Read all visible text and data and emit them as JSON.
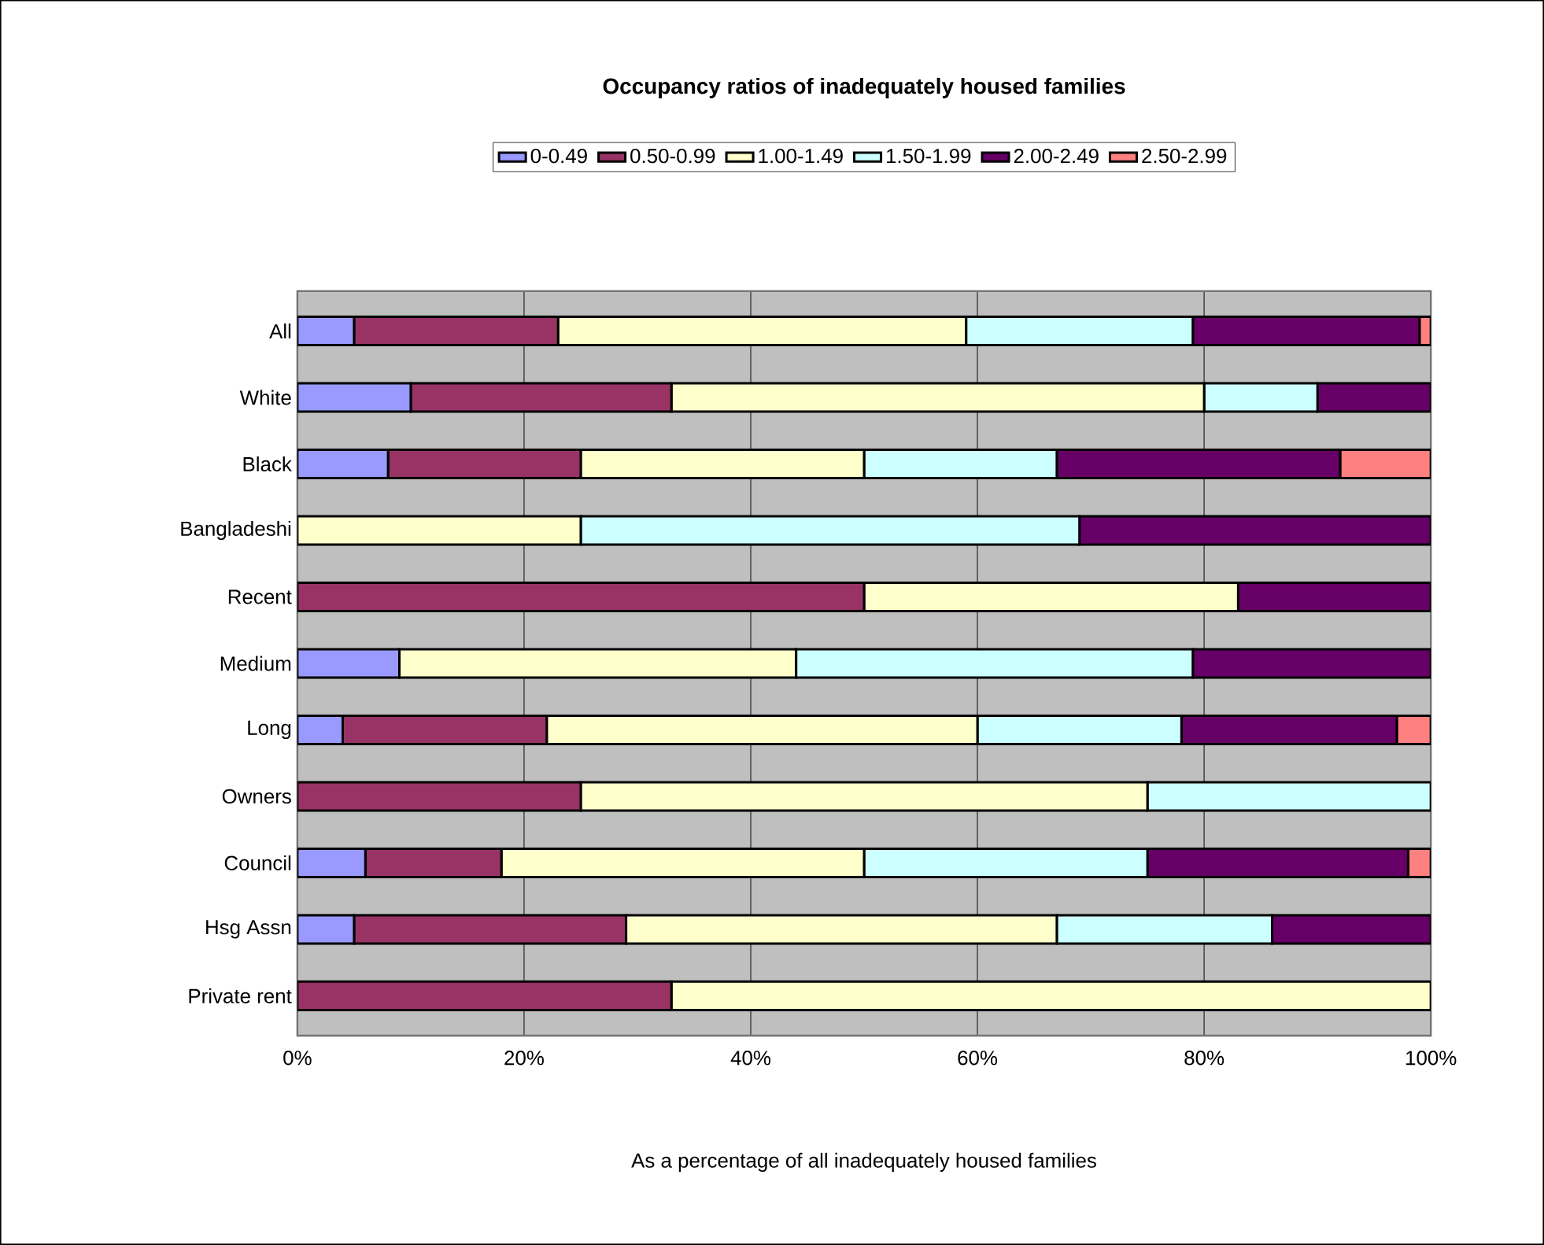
{
  "chart_data": {
    "type": "bar",
    "orientation": "horizontal",
    "stacked": true,
    "title": "Occupancy ratios of inadequately housed families",
    "xlabel": "As a percentage of all inadequately housed families",
    "categories": [
      "All",
      "White",
      "Black",
      "Bangladeshi",
      "Recent",
      "Medium",
      "Long",
      "Owners",
      "Council",
      "Hsg Assn",
      "Private rent"
    ],
    "series": [
      {
        "name": "0-0.49",
        "color": "#9999ff",
        "values": [
          5,
          10,
          8,
          0,
          0,
          9,
          4,
          0,
          6,
          5,
          0
        ]
      },
      {
        "name": "0.50-0.99",
        "color": "#993366",
        "values": [
          18,
          23,
          17,
          0,
          50,
          0,
          18,
          25,
          12,
          24,
          33
        ]
      },
      {
        "name": "1.00-1.49",
        "color": "#ffffcc",
        "values": [
          36,
          47,
          25,
          25,
          33,
          35,
          38,
          50,
          32,
          38,
          67
        ]
      },
      {
        "name": "1.50-1.99",
        "color": "#ccffff",
        "values": [
          20,
          10,
          17,
          44,
          0,
          35,
          18,
          25,
          25,
          19,
          0
        ]
      },
      {
        "name": "2.00-2.49",
        "color": "#660066",
        "values": [
          20,
          10,
          25,
          31,
          17,
          21,
          19,
          0,
          23,
          14,
          0
        ]
      },
      {
        "name": "2.50-2.99",
        "color": "#ff8080",
        "values": [
          1,
          0,
          8,
          0,
          0,
          0,
          3,
          0,
          2,
          0,
          0
        ]
      }
    ],
    "xlim": [
      0,
      100
    ],
    "xticks": [
      {
        "value": 0,
        "label": "0%"
      },
      {
        "value": 20,
        "label": "20%"
      },
      {
        "value": 40,
        "label": "40%"
      },
      {
        "value": 60,
        "label": "60%"
      },
      {
        "value": 80,
        "label": "80%"
      },
      {
        "value": 100,
        "label": "100%"
      }
    ],
    "grid": "x",
    "legend": "top"
  }
}
